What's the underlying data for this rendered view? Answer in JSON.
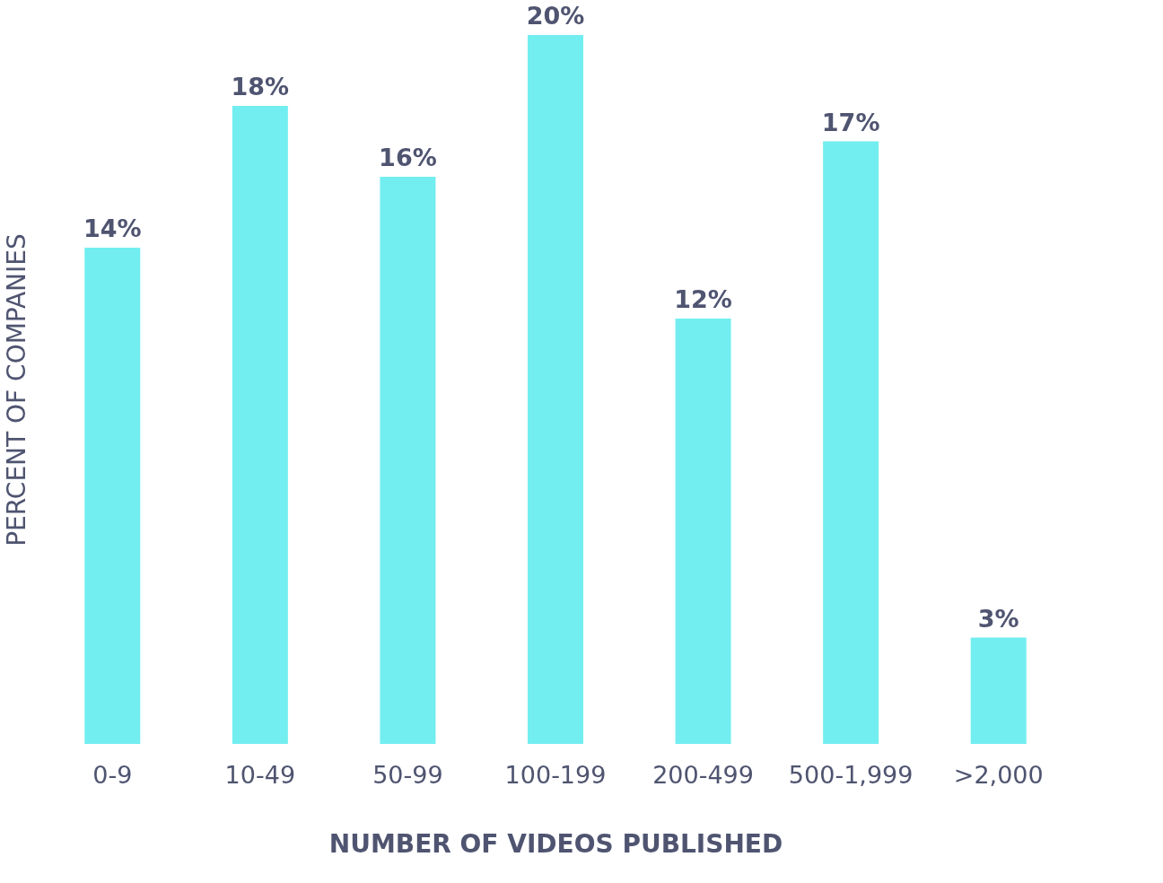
{
  "chart_data": {
    "type": "bar",
    "xlabel": "NUMBER OF VIDEOS PUBLISHED",
    "ylabel": "PERCENT OF COMPANIES",
    "categories": [
      "0-9",
      "10-49",
      "50-99",
      "100-199",
      "200-499",
      "500-1,999",
      ">2,000"
    ],
    "values": [
      14,
      18,
      16,
      20,
      12,
      17,
      3
    ],
    "value_labels": [
      "14%",
      "18%",
      "16%",
      "20%",
      "12%",
      "17%",
      "3%"
    ],
    "color": "#72eef0"
  }
}
